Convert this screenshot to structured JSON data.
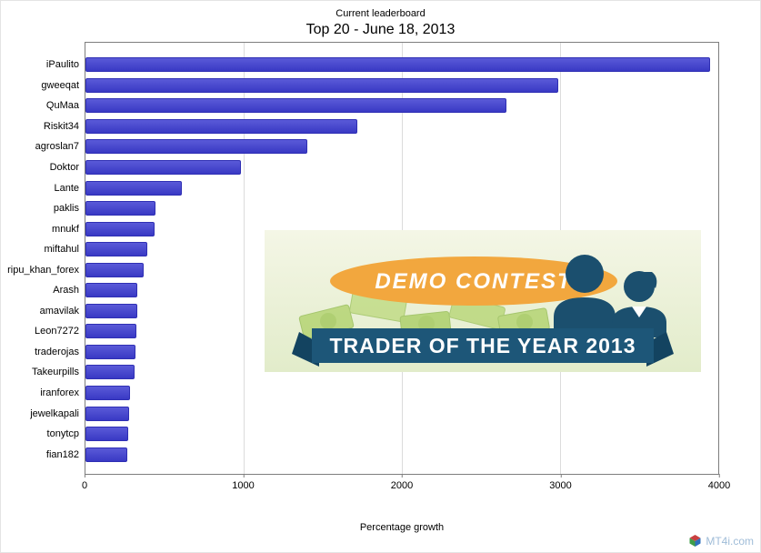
{
  "header": {
    "subtitle": "Current leaderboard",
    "title": "Top 20 - June 18, 2013"
  },
  "chart_data": {
    "type": "bar",
    "orientation": "horizontal",
    "title": "Top 20 - June 18, 2013",
    "subtitle": "Current leaderboard",
    "xlabel": "Percentage growth",
    "ylabel": "",
    "xlim": [
      0,
      4000
    ],
    "xticks": [
      0,
      1000,
      2000,
      3000,
      4000
    ],
    "grid": true,
    "bar_color": "#4343ce",
    "categories": [
      "iPaulito",
      "gweeqat",
      "QuMaa",
      "Riskit34",
      "agroslan7",
      "Doktor",
      "Lante",
      "paklis",
      "mnukf",
      "miftahul",
      "ripu_khan_forex",
      "Arash",
      "amavilak",
      "Leon7272",
      "traderojas",
      "Takeurpills",
      "iranforex",
      "jewelkapali",
      "tonytcp",
      "fian182"
    ],
    "values": [
      3950,
      2990,
      2660,
      1720,
      1400,
      980,
      610,
      445,
      435,
      390,
      365,
      330,
      328,
      320,
      315,
      310,
      280,
      278,
      270,
      262
    ]
  },
  "promo": {
    "badge_label": "DEMO CONTEST",
    "banner_label": "TRADER OF THE YEAR 2013",
    "badge_color": "#f2a73e",
    "banner_color": "#1d5678",
    "background_color": "#edf2da",
    "silhouette_color": "#1b4f6e"
  },
  "watermark": {
    "text": "MT4i.com"
  }
}
